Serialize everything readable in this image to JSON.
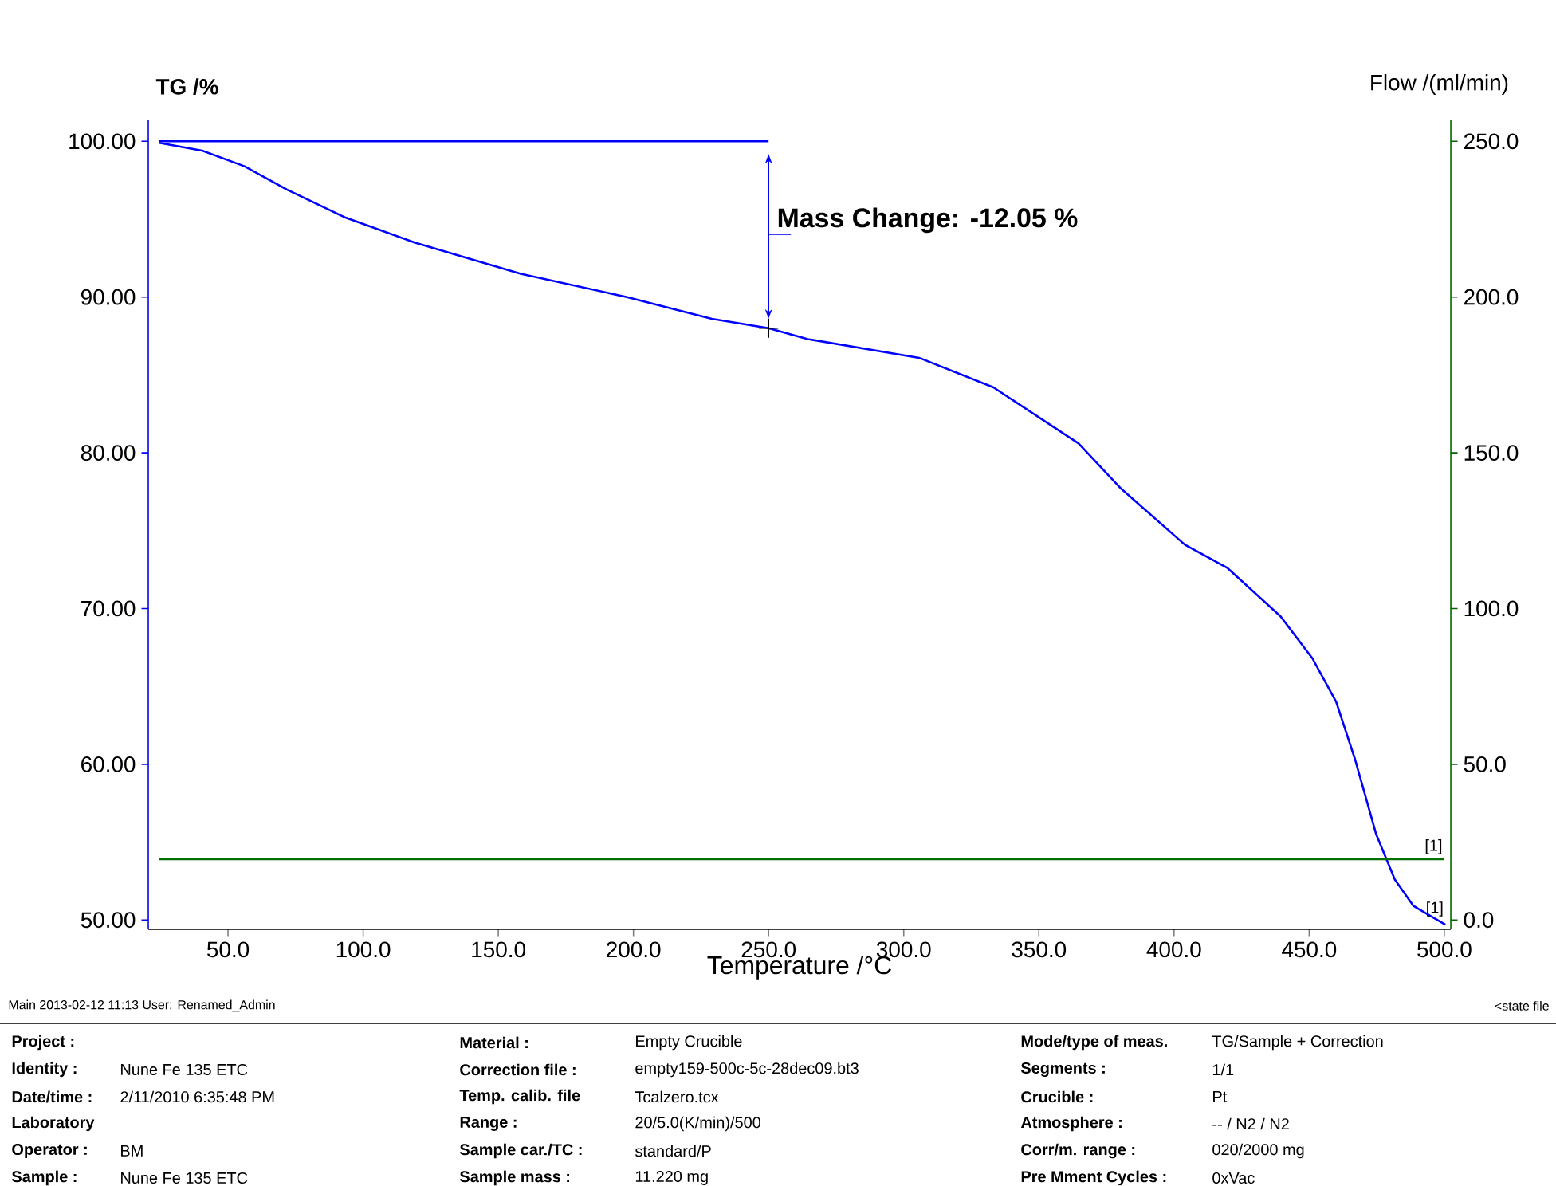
{
  "chart_data": {
    "type": "line",
    "xlabel": "Temperature /°C",
    "ylabel": "TG /%",
    "y2label": "Flow /(ml/min)",
    "xlim": [
      20.5,
      502.4
    ],
    "ylim": [
      49.4,
      101.4
    ],
    "y2lim": [
      -3,
      257
    ],
    "xticks": [
      {
        "value": 50,
        "label": "50.0"
      },
      {
        "value": 100,
        "label": "100.0"
      },
      {
        "value": 150,
        "label": "150.0"
      },
      {
        "value": 200,
        "label": "200.0"
      },
      {
        "value": 250,
        "label": "250.0"
      },
      {
        "value": 300,
        "label": "300.0"
      },
      {
        "value": 350,
        "label": "350.0"
      },
      {
        "value": 400,
        "label": "400.0"
      },
      {
        "value": 450,
        "label": "450.0"
      },
      {
        "value": 500,
        "label": "500.0"
      }
    ],
    "yticks": [
      {
        "value": 50,
        "label": "50.00"
      },
      {
        "value": 60,
        "label": "60.00"
      },
      {
        "value": 70,
        "label": "70.00"
      },
      {
        "value": 80,
        "label": "80.00"
      },
      {
        "value": 90,
        "label": "90.00"
      },
      {
        "value": 100,
        "label": "100.00"
      }
    ],
    "y2ticks": [
      {
        "value": 0,
        "label": "0.0"
      },
      {
        "value": 50,
        "label": "50.0"
      },
      {
        "value": 100,
        "label": "100.0"
      },
      {
        "value": 150,
        "label": "150.0"
      },
      {
        "value": 200,
        "label": "200.0"
      },
      {
        "value": 250,
        "label": "250.0"
      }
    ],
    "series": [
      {
        "color": "#0000ff",
        "x": [
          24.6,
          40.4,
          56.1,
          71.8,
          93.5,
          119,
          158.3,
          197.6,
          229,
          250,
          264.5,
          305.7,
          333.2,
          364.7,
          380.4,
          404,
          419.8,
          439.4,
          451.2,
          460,
          467,
          474.8,
          481.7,
          488.6,
          500.4
        ],
        "values": [
          99.9,
          99.4,
          98.4,
          96.9,
          95.1,
          93.5,
          91.5,
          90.0,
          88.6,
          88.0,
          87.3,
          86.1,
          84.2,
          80.6,
          77.7,
          74.1,
          72.6,
          69.5,
          66.8,
          64.0,
          60.3,
          55.5,
          52.6,
          50.9,
          49.7
        ]
      },
      {
        "color": "#007000",
        "axis": "y2",
        "x": [
          24.6,
          100,
          200,
          300,
          400,
          500
        ],
        "values": [
          19.5,
          19.5,
          19.5,
          19.5,
          19.5,
          19.5
        ]
      },
      {
        "color": "#0000ff",
        "x": [
          24.6,
          250
        ],
        "values": [
          100,
          100
        ]
      }
    ],
    "annotations": [
      "Mass Change: -12.05 %",
      "[1]",
      "[1]",
      "Main  2013-02-12 11:13   User: Renamed_Admin",
      "<state file",
      "Project :",
      "Material :",
      "Empty Crucible",
      "Mode/type of meas.",
      "TG/Sample + Correction",
      "Identity :",
      "Nune Fe 135 ETC",
      "Correction file :",
      "empty159-500c-5c-28dec09.bt3",
      "Segments :",
      "1/1",
      "Date/time :",
      "2/11/2010 6:35:48 PM",
      "Temp. calib. file",
      "Tcalzero.tcx",
      "Crucible :",
      "Pt",
      "Laboratory",
      "Range :",
      "20/5.0(K/min)/500",
      "Atmosphere :",
      "-- / N2 / N2",
      "Operator :",
      "BM",
      "Sample car./TC :",
      "standard/P",
      "Corr/m. range :",
      "020/2000 mg",
      "Sample :",
      "Nune Fe 135 ETC",
      "Sample mass :",
      "11.220 mg",
      "Pre Mment Cycles :",
      "0xVac"
    ]
  }
}
